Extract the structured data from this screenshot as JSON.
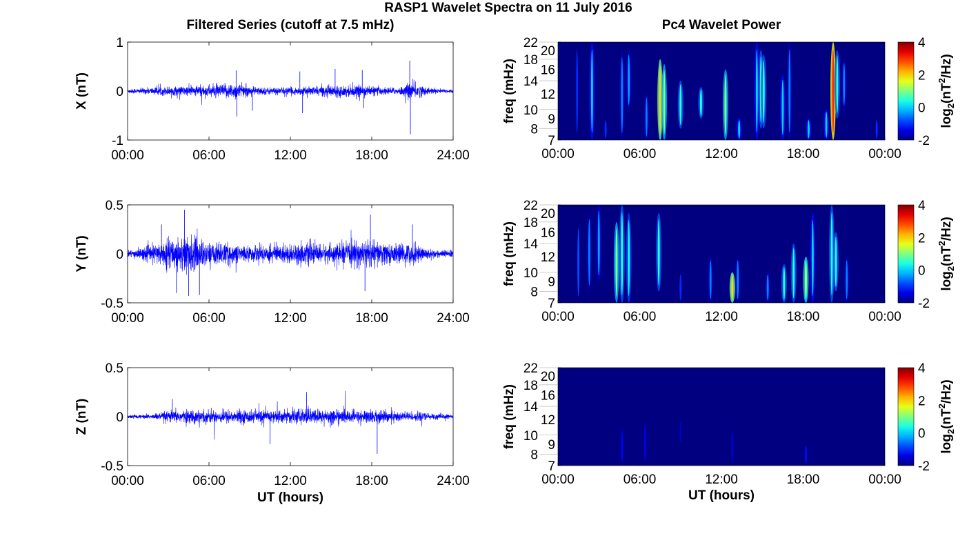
{
  "chart_data": {
    "title": "RASP1 Wavelet Spectra on 11 July 2016",
    "left_column_title": "Filtered Series (cutoff at 7.5 mHz)",
    "right_column_title": "Pc4 Wavelet Power",
    "left_panels": [
      {
        "type": "line",
        "component": "X",
        "ylabel": "X (nT)",
        "ylim": [
          -1,
          1
        ],
        "yticks": [
          "1",
          "0",
          "-1"
        ],
        "ytick_values": [
          1,
          0,
          -1
        ],
        "xlim_hours": [
          0,
          24
        ],
        "xticks": [
          "00:00",
          "06:00",
          "12:00",
          "18:00",
          "24:00"
        ],
        "color": "#0000ff",
        "envelope_amplitude_by_hour": [
          0.05,
          0.06,
          0.08,
          0.1,
          0.1,
          0.12,
          0.13,
          0.15,
          0.18,
          0.1,
          0.08,
          0.08,
          0.08,
          0.08,
          0.1,
          0.12,
          0.12,
          0.12,
          0.1,
          0.08,
          0.07,
          0.2,
          0.08,
          0.05,
          0.04
        ],
        "spikes": [
          [
            8.0,
            0.42
          ],
          [
            8.05,
            -0.52
          ],
          [
            20.8,
            0.62
          ],
          [
            20.85,
            -0.88
          ],
          [
            12.9,
            -0.45
          ],
          [
            12.7,
            0.4
          ],
          [
            15.3,
            0.45
          ],
          [
            17.3,
            0.43
          ],
          [
            17.4,
            -0.35
          ],
          [
            9.2,
            -0.4
          ]
        ]
      },
      {
        "type": "line",
        "component": "Y",
        "ylabel": "Y (nT)",
        "ylim": [
          -0.5,
          0.5
        ],
        "yticks": [
          "0.5",
          "0",
          "-0.5"
        ],
        "ytick_values": [
          0.5,
          0,
          -0.5
        ],
        "xlim_hours": [
          0,
          24
        ],
        "xticks": [
          "00:00",
          "06:00",
          "12:00",
          "18:00",
          "24:00"
        ],
        "color": "#0000ff",
        "envelope_amplitude_by_hour": [
          0.04,
          0.06,
          0.1,
          0.15,
          0.2,
          0.18,
          0.12,
          0.12,
          0.1,
          0.08,
          0.1,
          0.1,
          0.1,
          0.12,
          0.1,
          0.1,
          0.12,
          0.14,
          0.15,
          0.12,
          0.1,
          0.12,
          0.06,
          0.04,
          0.04
        ],
        "spikes": [
          [
            4.2,
            0.45
          ],
          [
            4.5,
            -0.43
          ],
          [
            2.5,
            0.3
          ],
          [
            5.3,
            -0.42
          ],
          [
            17.9,
            0.4
          ],
          [
            17.5,
            -0.38
          ],
          [
            21,
            0.3
          ],
          [
            3.6,
            -0.4
          ]
        ]
      },
      {
        "type": "line",
        "component": "Z",
        "ylabel": "Z (nT)",
        "ylim": [
          -0.5,
          0.5
        ],
        "yticks": [
          "0.5",
          "0",
          "-0.5"
        ],
        "ytick_values": [
          0.5,
          0,
          -0.5
        ],
        "xlim_hours": [
          0,
          24
        ],
        "xticks": [
          "00:00",
          "06:00",
          "12:00",
          "18:00",
          "24:00"
        ],
        "xlabel": "UT (hours)",
        "color": "#0000ff",
        "envelope_amplitude_by_hour": [
          0.02,
          0.02,
          0.03,
          0.06,
          0.07,
          0.07,
          0.07,
          0.07,
          0.07,
          0.07,
          0.07,
          0.07,
          0.07,
          0.08,
          0.08,
          0.08,
          0.07,
          0.07,
          0.07,
          0.07,
          0.06,
          0.05,
          0.04,
          0.03,
          0.02
        ],
        "spikes": [
          [
            13.2,
            0.25
          ],
          [
            18.4,
            -0.38
          ],
          [
            10.5,
            -0.28
          ],
          [
            3.3,
            0.18
          ]
        ]
      }
    ],
    "right_panels": [
      {
        "type": "heatmap",
        "component": "X",
        "ylabel": "freq (mHz)",
        "yscale": "log",
        "ylim": [
          7,
          22
        ],
        "yticks": [
          "7",
          "8",
          "9",
          "10",
          "12",
          "14",
          "16",
          "18",
          "20",
          "22"
        ],
        "ytick_values": [
          7,
          8,
          9,
          10,
          12,
          14,
          16,
          18,
          20,
          22
        ],
        "xticks": [
          "00:00",
          "06:00",
          "12:00",
          "18:00",
          "00:00"
        ],
        "xlim_hours": [
          0,
          24
        ],
        "colorbar": {
          "label_base": "log",
          "label_sub": "2",
          "label_mid": "(nT",
          "label_sup": "2",
          "label_end": "/Hz)",
          "range": [
            -2,
            4
          ],
          "ticks": [
            "4",
            "2",
            "0",
            "-2"
          ],
          "tick_values": [
            4,
            2,
            0,
            -2
          ],
          "colormap": "jet"
        },
        "bursts_hour_fmin_fmax_log2power": [
          [
            1.4,
            7,
            22,
            -1
          ],
          [
            2.5,
            7,
            22,
            0
          ],
          [
            3.5,
            7,
            9,
            -1
          ],
          [
            4.7,
            7,
            20,
            -0.5
          ],
          [
            5.2,
            10,
            20,
            -0.3
          ],
          [
            6.5,
            7,
            12,
            -0.5
          ],
          [
            7.5,
            7,
            18,
            2
          ],
          [
            7.8,
            7,
            17,
            1
          ],
          [
            9,
            8,
            14,
            0.5
          ],
          [
            10.5,
            9,
            13,
            0.5
          ],
          [
            12.3,
            7,
            16,
            1
          ],
          [
            13.3,
            7,
            9,
            0
          ],
          [
            14.6,
            7,
            22,
            0
          ],
          [
            14.9,
            8,
            20,
            0.5
          ],
          [
            15.1,
            8,
            19,
            0.5
          ],
          [
            16.5,
            7,
            15,
            0
          ],
          [
            17,
            7,
            22,
            -0.5
          ],
          [
            18.4,
            7,
            9,
            0
          ],
          [
            19.7,
            7,
            10,
            0
          ],
          [
            20.2,
            7,
            22,
            3
          ],
          [
            20.5,
            9,
            20,
            0.5
          ],
          [
            21,
            10,
            18,
            -0.5
          ],
          [
            23.4,
            7,
            9,
            -1
          ]
        ]
      },
      {
        "type": "heatmap",
        "component": "Y",
        "ylabel": "freq (mHz)",
        "yscale": "log",
        "ylim": [
          7,
          22
        ],
        "yticks": [
          "7",
          "8",
          "9",
          "10",
          "12",
          "14",
          "16",
          "18",
          "20",
          "22"
        ],
        "ytick_values": [
          7,
          8,
          9,
          10,
          12,
          14,
          16,
          18,
          20,
          22
        ],
        "xticks": [
          "00:00",
          "06:00",
          "12:00",
          "18:00",
          "00:00"
        ],
        "xlim_hours": [
          0,
          24
        ],
        "colorbar": {
          "label_base": "log",
          "label_sub": "2",
          "label_mid": "(nT",
          "label_sup": "2",
          "label_end": "/Hz)",
          "range": [
            -2,
            4
          ],
          "ticks": [
            "4",
            "2",
            "0",
            "-2"
          ],
          "tick_values": [
            4,
            2,
            0,
            -2
          ],
          "colormap": "jet"
        },
        "bursts_hour_fmin_fmax_log2power": [
          [
            1.5,
            7,
            18,
            -0.8
          ],
          [
            2.3,
            8,
            20,
            -0.5
          ],
          [
            3,
            9,
            22,
            -0.3
          ],
          [
            4.3,
            7,
            18,
            1
          ],
          [
            4.7,
            7,
            22,
            0.5
          ],
          [
            5.2,
            7,
            20,
            0.3
          ],
          [
            7.4,
            8,
            20,
            0.5
          ],
          [
            9,
            7,
            10,
            -1
          ],
          [
            11.2,
            7,
            12,
            -0.5
          ],
          [
            12.8,
            7,
            10,
            2
          ],
          [
            13.2,
            7,
            12,
            -0.5
          ],
          [
            15.4,
            7,
            10,
            -0.5
          ],
          [
            16.6,
            7,
            11,
            0.5
          ],
          [
            17.3,
            7,
            14,
            0.5
          ],
          [
            18.2,
            7,
            12,
            1.3
          ],
          [
            18.7,
            7,
            20,
            0
          ],
          [
            20.1,
            7,
            22,
            0.5
          ],
          [
            20.4,
            8,
            16,
            0.5
          ],
          [
            21.2,
            7,
            12,
            -0.5
          ]
        ]
      },
      {
        "type": "heatmap",
        "component": "Z",
        "ylabel": "freq (mHz)",
        "yscale": "log",
        "ylim": [
          7,
          22
        ],
        "yticks": [
          "7",
          "8",
          "9",
          "10",
          "12",
          "14",
          "16",
          "18",
          "20",
          "22"
        ],
        "ytick_values": [
          7,
          8,
          9,
          10,
          12,
          14,
          16,
          18,
          20,
          22
        ],
        "xticks": [
          "00:00",
          "06:00",
          "12:00",
          "18:00",
          "00:00"
        ],
        "xlim_hours": [
          0,
          24
        ],
        "xlabel": "UT (hours)",
        "colorbar": {
          "label_base": "log",
          "label_sub": "2",
          "label_mid": "(nT",
          "label_sup": "2",
          "label_end": "/Hz)",
          "range": [
            -2,
            4
          ],
          "ticks": [
            "4",
            "2",
            "0",
            "-2"
          ],
          "tick_values": [
            4,
            2,
            0,
            -2
          ],
          "colormap": "jet"
        },
        "bursts_hour_fmin_fmax_log2power": [
          [
            4.7,
            7,
            11,
            -1.3
          ],
          [
            6.4,
            7,
            12,
            -1.4
          ],
          [
            9,
            9,
            12,
            -1.6
          ],
          [
            12.8,
            7,
            11,
            -1.5
          ],
          [
            18.2,
            7,
            9,
            -1.2
          ]
        ]
      }
    ]
  }
}
